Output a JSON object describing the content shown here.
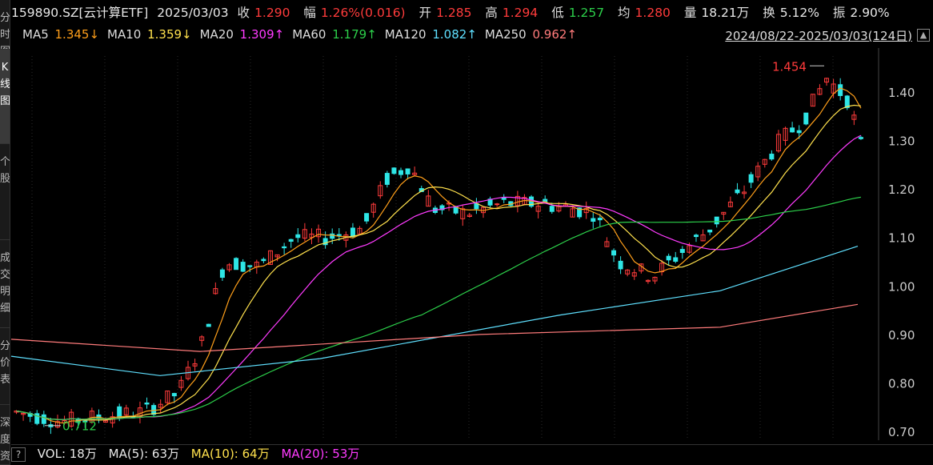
{
  "sidebar": {
    "tabs": [
      "分时图",
      "K线图",
      "个股",
      "成交明细",
      "分价表",
      "深度资料"
    ]
  },
  "header": {
    "symbol": "159890.SZ[云计算ETF]",
    "date": "2025/03/03",
    "close_label": "收",
    "close": "1.290",
    "change_label": "幅",
    "change": "1.26%(0.016)",
    "open_label": "开",
    "open": "1.285",
    "high_label": "高",
    "high": "1.294",
    "low_label": "低",
    "low": "1.257",
    "avg_label": "均",
    "avg": "1.280",
    "vol_label": "量",
    "vol": "18.21万",
    "turnover_label": "换",
    "turnover": "5.12%",
    "amp_label": "振",
    "amp": "2.90%"
  },
  "ma": [
    {
      "label": "MA5",
      "value": "1.345↓",
      "color": "#ff9f1a"
    },
    {
      "label": "MA10",
      "value": "1.359↓",
      "color": "#ffe14d"
    },
    {
      "label": "MA20",
      "value": "1.309↑",
      "color": "#ff3bff"
    },
    {
      "label": "MA60",
      "value": "1.179↑",
      "color": "#2ccf4a"
    },
    {
      "label": "MA120",
      "value": "1.082↑",
      "color": "#5fe0ff"
    },
    {
      "label": "MA250",
      "value": "0.962↑",
      "color": "#ff7b7b"
    }
  ],
  "range": "2024/08/22-2025/03/03(124日)",
  "volume": {
    "label": "VOL: 18万",
    "ma5": "MA(5): 63万",
    "ma10": "MA(10): 64万",
    "ma20": "MA(20): 53万"
  },
  "chart_data": {
    "type": "candlestick",
    "ylim": [
      0.68,
      1.48
    ],
    "yticks": [
      "1.40",
      "1.30",
      "1.20",
      "1.10",
      "1.00",
      "0.90",
      "0.80",
      "0.70"
    ],
    "annotations": [
      {
        "text": "1.454",
        "value": 1.454,
        "kind": "high"
      },
      {
        "text": "0.712",
        "value": 0.712,
        "kind": "low"
      }
    ],
    "colors": {
      "up": "#ff3b3b",
      "down": "#2ee6e6"
    }
  }
}
